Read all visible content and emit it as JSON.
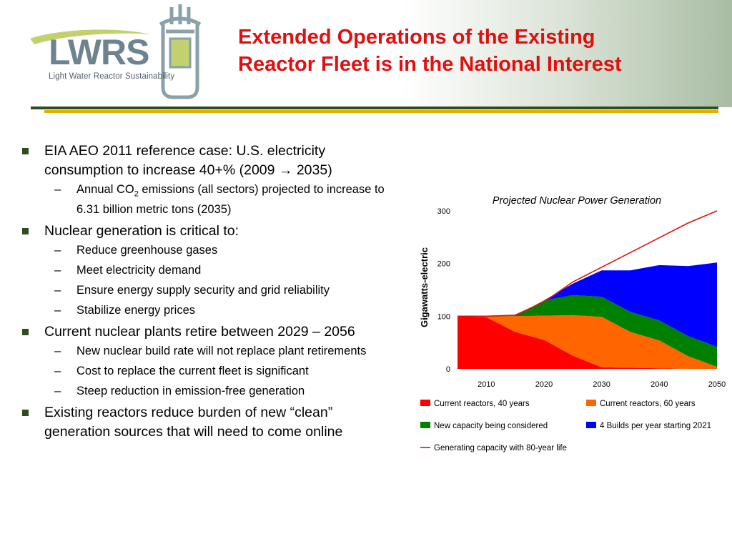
{
  "header": {
    "title_line1": "Extended Operations of the Existing",
    "title_line2": "Reactor Fleet is in the National Interest",
    "logo_text": "LWRS",
    "logo_caption": "Light Water Reactor Sustainability"
  },
  "bullets": [
    {
      "text": "EIA AEO 2011 reference case: U.S. electricity consumption to increase 40+% (2009 → 2035)",
      "sub": [
        {
          "before": "Annual CO",
          "subscript": "2",
          "after": " emissions (all sectors) projected to increase to 6.31 billion metric tons (2035)"
        }
      ]
    },
    {
      "text": "Nuclear generation is critical to:",
      "sub": [
        {
          "text": "Reduce greenhouse gases"
        },
        {
          "text": "Meet electricity demand"
        },
        {
          "text": "Ensure energy supply security and grid reliability"
        },
        {
          "text": "Stabilize energy prices"
        }
      ]
    },
    {
      "text": "Current nuclear plants retire between 2029 – 2056",
      "sub": [
        {
          "text": "New nuclear build rate will not replace plant retirements"
        },
        {
          "text": "Cost to replace the current fleet is significant"
        },
        {
          "text": "Steep reduction in emission-free generation"
        }
      ]
    },
    {
      "text": "Existing reactors reduce burden of new “clean” generation sources that will need to come online",
      "sub": []
    }
  ],
  "chart_data": {
    "type": "area",
    "title": "Projected Nuclear Power Generation",
    "ylabel": "Gigawatts-electric",
    "xlabel": "",
    "xlim": [
      2005,
      2050
    ],
    "ylim": [
      0,
      300
    ],
    "x_ticks": [
      2010,
      2020,
      2030,
      2040,
      2050
    ],
    "y_ticks": [
      0,
      100,
      200,
      300
    ],
    "grid": false,
    "legend_position": "bottom",
    "x": [
      2005,
      2010,
      2015,
      2020,
      2025,
      2030,
      2035,
      2040,
      2045,
      2050
    ],
    "series": [
      {
        "name": "Current reactors, 40 years",
        "color": "#ff0000",
        "kind": "stacked-area",
        "values": [
          100,
          98,
          70,
          55,
          25,
          3,
          2,
          1,
          0,
          0
        ]
      },
      {
        "name": "Current reactors, 60 years",
        "color": "#ff6600",
        "kind": "stacked-area",
        "values": [
          0,
          3,
          30,
          46,
          77,
          96,
          68,
          53,
          24,
          4
        ]
      },
      {
        "name": "New capacity being considered",
        "color": "#008000",
        "kind": "stacked-area",
        "values": [
          0,
          0,
          1,
          29,
          38,
          38,
          38,
          38,
          38,
          38
        ]
      },
      {
        "name": "4 Builds per year starting 2021",
        "color": "#0000ff",
        "kind": "stacked-area",
        "values": [
          0,
          0,
          0,
          0,
          22,
          50,
          79,
          105,
          133,
          160
        ]
      },
      {
        "name": "Generating capacity with 80-year life",
        "color": "#e01010",
        "kind": "line",
        "values": [
          100,
          100,
          102,
          127,
          165,
          193,
          221,
          249,
          277,
          300
        ]
      }
    ]
  }
}
